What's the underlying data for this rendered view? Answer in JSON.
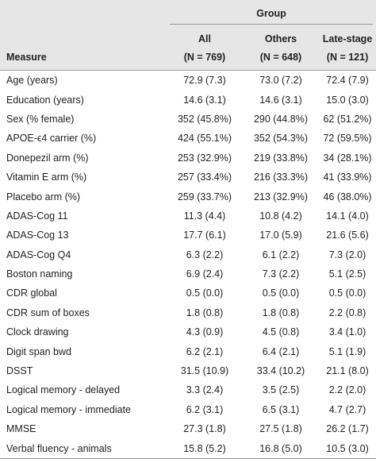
{
  "table": {
    "group_title": "Group",
    "measure_header": "Measure",
    "columns": [
      {
        "name": "All",
        "n_label": "(N = 769)"
      },
      {
        "name": "Others",
        "n_label": "(N = 648)"
      },
      {
        "name": "Late-stage",
        "n_label": "(N = 121)"
      }
    ],
    "rows": [
      [
        "Age (years)",
        "72.9 (7.3)",
        "73.0 (7.2)",
        "72.4 (7.9)"
      ],
      [
        "Education (years)",
        "14.6 (3.1)",
        "14.6 (3.1)",
        "15.0 (3.0)"
      ],
      [
        "Sex (% female)",
        "352 (45.8%)",
        "290 (44.8%)",
        "62 (51.2%)"
      ],
      [
        "APOE-ϵ4 carrier (%)",
        "424 (55.1%)",
        "352 (54.3%)",
        "72 (59.5%)"
      ],
      [
        "Donepezil arm (%)",
        "253 (32.9%)",
        "219 (33.8%)",
        "34 (28.1%)"
      ],
      [
        "Vitamin E arm (%)",
        "257 (33.4%)",
        "216 (33.3%)",
        "41 (33.9%)"
      ],
      [
        "Placebo arm (%)",
        "259 (33.7%)",
        "213 (32.9%)",
        "46 (38.0%)"
      ],
      [
        "ADAS-Cog 11",
        "11.3 (4.4)",
        "10.8 (4.2)",
        "14.1 (4.0)"
      ],
      [
        "ADAS-Cog 13",
        "17.7 (6.1)",
        "17.0 (5.9)",
        "21.6 (5.6)"
      ],
      [
        "ADAS-Cog Q4",
        "6.3 (2.2)",
        "6.1 (2.2)",
        "7.3 (2.0)"
      ],
      [
        "Boston naming",
        "6.9 (2.4)",
        "7.3 (2.2)",
        "5.1 (2.5)"
      ],
      [
        "CDR global",
        "0.5 (0.0)",
        "0.5 (0.0)",
        "0.5 (0.0)"
      ],
      [
        "CDR sum of boxes",
        "1.8 (0.8)",
        "1.8 (0.8)",
        "2.2 (0.8)"
      ],
      [
        "Clock drawing",
        "4.3 (0.9)",
        "4.5 (0.8)",
        "3.4 (1.0)"
      ],
      [
        "Digit span bwd",
        "6.2 (2.1)",
        "6.4 (2.1)",
        "5.1 (1.9)"
      ],
      [
        "DSST",
        "31.5 (10.9)",
        "33.4 (10.2)",
        "21.1 (8.0)"
      ],
      [
        "Logical memory - delayed",
        "3.3 (2.4)",
        "3.5 (2.5)",
        "2.2 (2.0)"
      ],
      [
        "Logical memory - immediate",
        "6.2 (3.1)",
        "6.5 (3.1)",
        "4.7 (2.7)"
      ],
      [
        "MMSE",
        "27.3 (1.8)",
        "27.5 (1.8)",
        "26.2 (1.7)"
      ],
      [
        "Verbal fluency - animals",
        "15.8 (5.2)",
        "16.8 (5.0)",
        "10.5 (3.0)"
      ]
    ]
  }
}
